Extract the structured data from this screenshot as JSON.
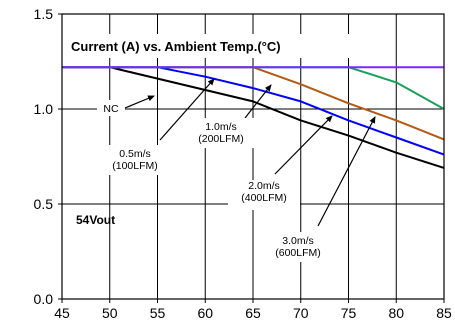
{
  "chart_data": {
    "type": "line",
    "title": "Current (A) vs. Ambient Temp.(°C)",
    "xlim": [
      45,
      85
    ],
    "ylim": [
      0,
      1.5
    ],
    "x_ticks": [
      "45",
      "50",
      "55",
      "60",
      "65",
      "70",
      "75",
      "80",
      "85"
    ],
    "y_ticks": [
      "0.0",
      "0.5",
      "1.0",
      "1.5"
    ],
    "grid": true,
    "vout_label": "54Vout",
    "series": [
      {
        "name": "NC",
        "color": "#000000",
        "points": [
          [
            45,
            1.22
          ],
          [
            50,
            1.22
          ],
          [
            60,
            1.1
          ],
          [
            65,
            1.04
          ],
          [
            70,
            0.94
          ],
          [
            75,
            0.86
          ],
          [
            80,
            0.77
          ],
          [
            85,
            0.69
          ]
        ]
      },
      {
        "name": "0.5m/s (100LFM)",
        "color": "#0000ff",
        "points": [
          [
            45,
            1.22
          ],
          [
            55,
            1.22
          ],
          [
            60,
            1.17
          ],
          [
            65,
            1.11
          ],
          [
            70,
            1.04
          ],
          [
            75,
            0.94
          ],
          [
            80,
            0.85
          ],
          [
            85,
            0.76
          ]
        ]
      },
      {
        "name": "1.0m/s (200LFM)",
        "color": "#b25a16",
        "points": [
          [
            45,
            1.22
          ],
          [
            65,
            1.22
          ],
          [
            70,
            1.13
          ],
          [
            75,
            1.03
          ],
          [
            80,
            0.94
          ],
          [
            85,
            0.84
          ]
        ]
      },
      {
        "name": "2.0m/s (400LFM)",
        "color": "#1aa05a",
        "points": [
          [
            45,
            1.22
          ],
          [
            75,
            1.22
          ],
          [
            80,
            1.14
          ],
          [
            85,
            1.0
          ]
        ]
      },
      {
        "name": "3.0m/s (600LFM)",
        "color": "#7a29ff",
        "points": [
          [
            45,
            1.22
          ],
          [
            85,
            1.22
          ]
        ]
      }
    ],
    "annotations": [
      {
        "lines": [
          "NC"
        ]
      },
      {
        "lines": [
          "0.5m/s",
          "(100LFM)"
        ]
      },
      {
        "lines": [
          "1.0m/s",
          "(200LFM)"
        ]
      },
      {
        "lines": [
          "2.0m/s",
          "(400LFM)"
        ]
      },
      {
        "lines": [
          "3.0m/s",
          "(600LFM)"
        ]
      }
    ]
  }
}
